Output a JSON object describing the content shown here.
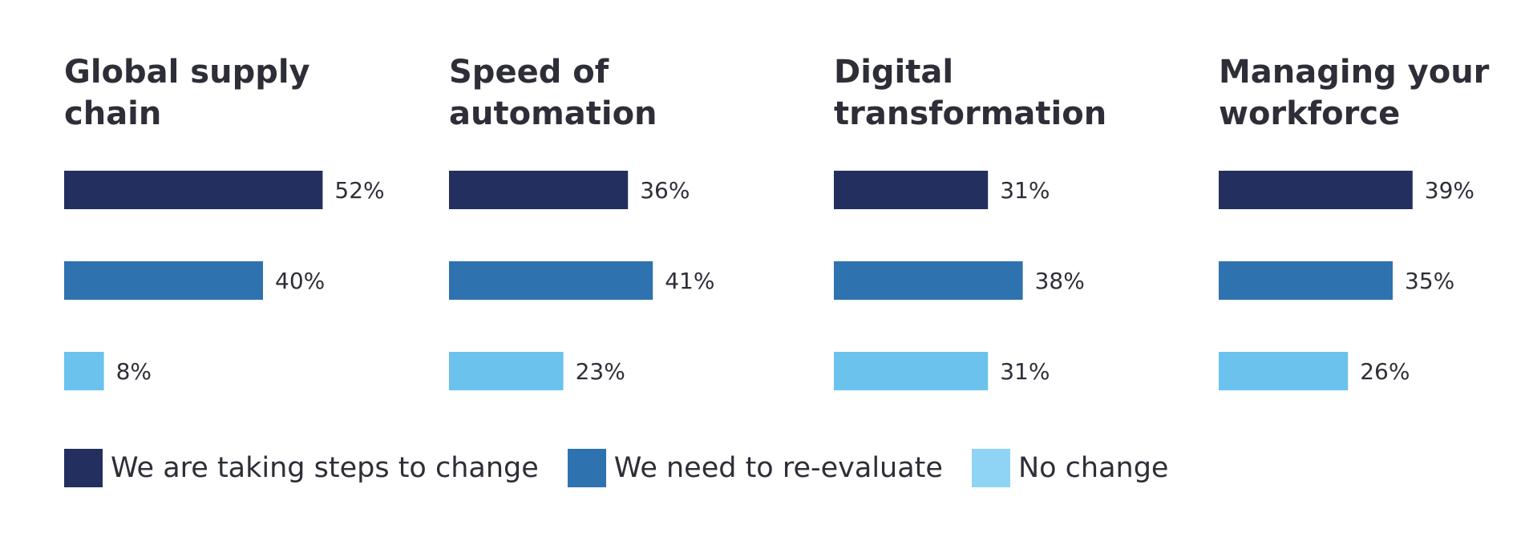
{
  "chart_data": {
    "type": "bar",
    "orientation": "horizontal",
    "value_format": "percent",
    "series": [
      {
        "name": "We are taking steps to change",
        "color": "#232f5e"
      },
      {
        "name": "We need to re-evaluate",
        "color": "#2f72b0"
      },
      {
        "name": "No change",
        "color": "#6bc2ec"
      }
    ],
    "legend_swatch_colors": [
      "#232f5e",
      "#2f72b0",
      "#8fd3f5"
    ],
    "panels": [
      {
        "title": "Global supply\nchain",
        "values": [
          52,
          40,
          8
        ],
        "labels": [
          "52%",
          "40%",
          "8%"
        ]
      },
      {
        "title": "Speed of\nautomation",
        "values": [
          36,
          41,
          23
        ],
        "labels": [
          "36%",
          "41%",
          "23%"
        ]
      },
      {
        "title": "Digital\ntransformation",
        "values": [
          31,
          38,
          31
        ],
        "labels": [
          "31%",
          "38%",
          "31%"
        ]
      },
      {
        "title": "Managing your\nworkforce",
        "values": [
          39,
          35,
          26
        ],
        "labels": [
          "39%",
          "35%",
          "26%"
        ]
      }
    ],
    "legend_placement": "bottom-left",
    "grid": false
  }
}
